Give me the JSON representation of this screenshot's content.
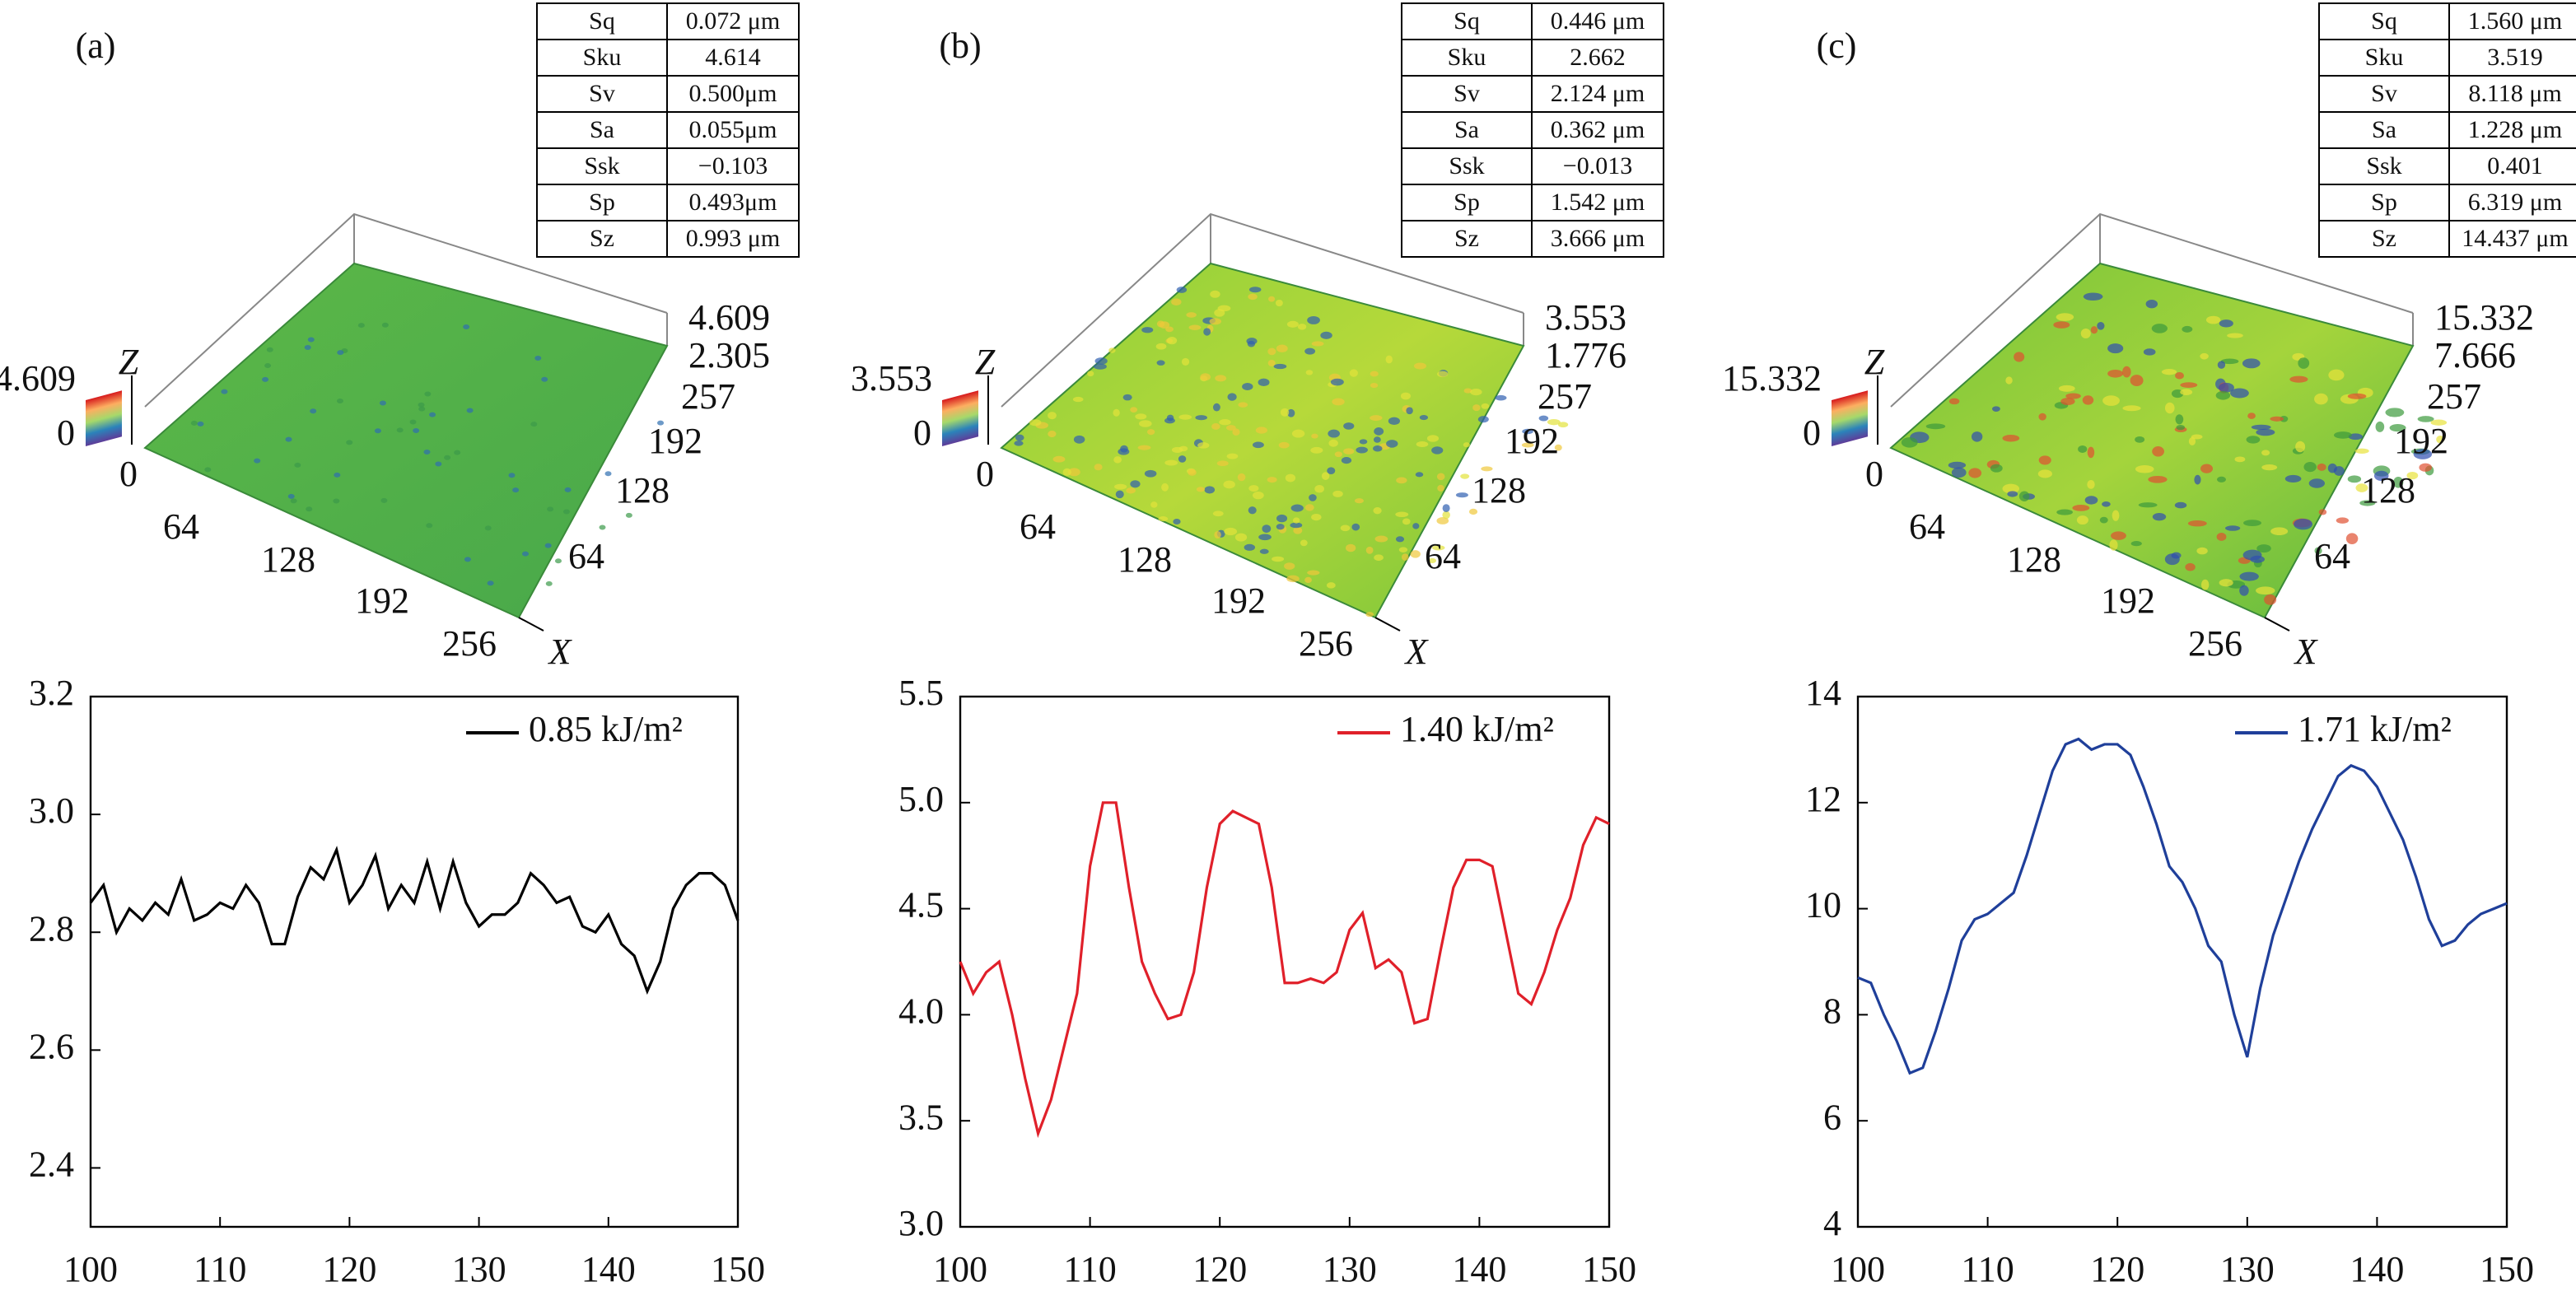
{
  "panels": [
    {
      "label": "(a)",
      "table": [
        [
          "Sq",
          "0.072 μm"
        ],
        [
          "Sku",
          "4.614"
        ],
        [
          "Sv",
          "0.500μm"
        ],
        [
          "Sa",
          "0.055μm"
        ],
        [
          "Ssk",
          "−0.103"
        ],
        [
          "Sp",
          "0.493μm"
        ],
        [
          "Sz",
          "0.993 μm"
        ]
      ],
      "surface": {
        "z_top": "4.609",
        "z_zero": "0",
        "z_axis": "Z",
        "right_z": [
          "4.609",
          "2.305"
        ],
        "y_ticks": [
          "257",
          "192",
          "128",
          "64"
        ],
        "x_ticks": [
          "0",
          "64",
          "128",
          "192",
          "256"
        ],
        "x_axis": "X"
      }
    },
    {
      "label": "(b)",
      "table": [
        [
          "Sq",
          "0.446 μm"
        ],
        [
          "Sku",
          "2.662"
        ],
        [
          "Sv",
          "2.124 μm"
        ],
        [
          "Sa",
          "0.362 μm"
        ],
        [
          "Ssk",
          "−0.013"
        ],
        [
          "Sp",
          "1.542 μm"
        ],
        [
          "Sz",
          "3.666 μm"
        ]
      ],
      "surface": {
        "z_top": "3.553",
        "z_zero": "0",
        "z_axis": "Z",
        "right_z": [
          "3.553",
          "1.776"
        ],
        "y_ticks": [
          "257",
          "192",
          "128",
          "64"
        ],
        "x_ticks": [
          "0",
          "64",
          "128",
          "192",
          "256"
        ],
        "x_axis": "X"
      }
    },
    {
      "label": "(c)",
      "table": [
        [
          "Sq",
          "1.560 μm"
        ],
        [
          "Sku",
          "3.519"
        ],
        [
          "Sv",
          "8.118 μm"
        ],
        [
          "Sa",
          "1.228 μm"
        ],
        [
          "Ssk",
          "0.401"
        ],
        [
          "Sp",
          "6.319 μm"
        ],
        [
          "Sz",
          "14.437 μm"
        ]
      ],
      "surface": {
        "z_top": "15.332",
        "z_zero": "0",
        "z_axis": "Z",
        "right_z": [
          "15.332",
          "7.666"
        ],
        "y_ticks": [
          "257",
          "192",
          "128",
          "64"
        ],
        "x_ticks": [
          "0",
          "64",
          "128",
          "192",
          "256"
        ],
        "x_axis": "X"
      }
    }
  ],
  "chart_data": [
    {
      "type": "line",
      "x": [
        100,
        101,
        102,
        103,
        104,
        105,
        106,
        107,
        108,
        109,
        110,
        111,
        112,
        113,
        114,
        115,
        116,
        117,
        118,
        119,
        120,
        121,
        122,
        123,
        124,
        125,
        126,
        127,
        128,
        129,
        130,
        131,
        132,
        133,
        134,
        135,
        136,
        137,
        138,
        139,
        140,
        141,
        142,
        143,
        144,
        145,
        146,
        147,
        148,
        149,
        150
      ],
      "series": [
        {
          "name": "0.85 kJ/m²",
          "color": "#000000",
          "values": [
            2.85,
            2.88,
            2.8,
            2.84,
            2.82,
            2.85,
            2.83,
            2.89,
            2.82,
            2.83,
            2.85,
            2.84,
            2.88,
            2.85,
            2.78,
            2.78,
            2.86,
            2.91,
            2.89,
            2.94,
            2.85,
            2.88,
            2.93,
            2.84,
            2.88,
            2.85,
            2.92,
            2.84,
            2.92,
            2.85,
            2.81,
            2.83,
            2.83,
            2.85,
            2.9,
            2.88,
            2.85,
            2.86,
            2.81,
            2.8,
            2.83,
            2.78,
            2.76,
            2.7,
            2.75,
            2.84,
            2.88,
            2.9,
            2.9,
            2.88,
            2.82
          ]
        }
      ],
      "xlim": [
        100,
        150
      ],
      "xticks": [
        100,
        110,
        120,
        130,
        140,
        150
      ],
      "ylim": [
        2.3,
        3.2
      ],
      "yticks": [
        2.4,
        2.6,
        2.8,
        {
          "value": 3,
          "label": "3.0"
        },
        3.2
      ]
    },
    {
      "type": "line",
      "x": [
        100,
        101,
        102,
        103,
        104,
        105,
        106,
        107,
        108,
        109,
        110,
        111,
        112,
        113,
        114,
        115,
        116,
        117,
        118,
        119,
        120,
        121,
        122,
        123,
        124,
        125,
        126,
        127,
        128,
        129,
        130,
        131,
        132,
        133,
        134,
        135,
        136,
        137,
        138,
        139,
        140,
        141,
        142,
        143,
        144,
        145,
        146,
        147,
        148,
        149,
        150
      ],
      "series": [
        {
          "name": "1.40 kJ/m²",
          "color": "#e0202a",
          "values": [
            4.25,
            4.1,
            4.2,
            4.25,
            4.0,
            3.7,
            3.44,
            3.6,
            3.85,
            4.1,
            4.7,
            5.0,
            5.0,
            4.6,
            4.25,
            4.1,
            3.98,
            4.0,
            4.2,
            4.6,
            4.9,
            4.96,
            4.93,
            4.9,
            4.6,
            4.15,
            4.15,
            4.17,
            4.15,
            4.2,
            4.4,
            4.48,
            4.22,
            4.26,
            4.2,
            3.96,
            3.98,
            4.3,
            4.6,
            4.73,
            4.73,
            4.7,
            4.4,
            4.1,
            4.05,
            4.2,
            4.4,
            4.55,
            4.8,
            4.93,
            4.9
          ]
        }
      ],
      "xlim": [
        100,
        150
      ],
      "xticks": [
        100,
        110,
        120,
        130,
        140,
        150
      ],
      "ylim": [
        3,
        5.5
      ],
      "yticks": [
        {
          "value": 3,
          "label": "3.0"
        },
        3.5,
        {
          "value": 4,
          "label": "4.0"
        },
        4.5,
        {
          "value": 5,
          "label": "5.0"
        },
        5.5
      ]
    },
    {
      "type": "line",
      "x": [
        100,
        101,
        102,
        103,
        104,
        105,
        106,
        107,
        108,
        109,
        110,
        111,
        112,
        113,
        114,
        115,
        116,
        117,
        118,
        119,
        120,
        121,
        122,
        123,
        124,
        125,
        126,
        127,
        128,
        129,
        130,
        131,
        132,
        133,
        134,
        135,
        136,
        137,
        138,
        139,
        140,
        141,
        142,
        143,
        144,
        145,
        146,
        147,
        148,
        149,
        150
      ],
      "series": [
        {
          "name": "1.71 kJ/m²",
          "color": "#1f3f9a",
          "values": [
            8.7,
            8.6,
            8.0,
            7.5,
            6.9,
            7.0,
            7.7,
            8.5,
            9.4,
            9.8,
            9.9,
            10.1,
            10.3,
            11.0,
            11.8,
            12.6,
            13.1,
            13.2,
            13.0,
            13.1,
            13.1,
            12.9,
            12.3,
            11.6,
            10.8,
            10.5,
            10.0,
            9.3,
            9.0,
            8.0,
            7.2,
            8.5,
            9.5,
            10.2,
            10.9,
            11.5,
            12.0,
            12.5,
            12.7,
            12.6,
            12.3,
            11.8,
            11.3,
            10.6,
            9.8,
            9.3,
            9.4,
            9.7,
            9.9,
            10.0,
            10.1
          ]
        }
      ],
      "xlim": [
        100,
        150
      ],
      "xticks": [
        100,
        110,
        120,
        130,
        140,
        150
      ],
      "ylim": [
        4,
        14
      ],
      "yticks": [
        4,
        6,
        8,
        10,
        12,
        14
      ]
    }
  ]
}
